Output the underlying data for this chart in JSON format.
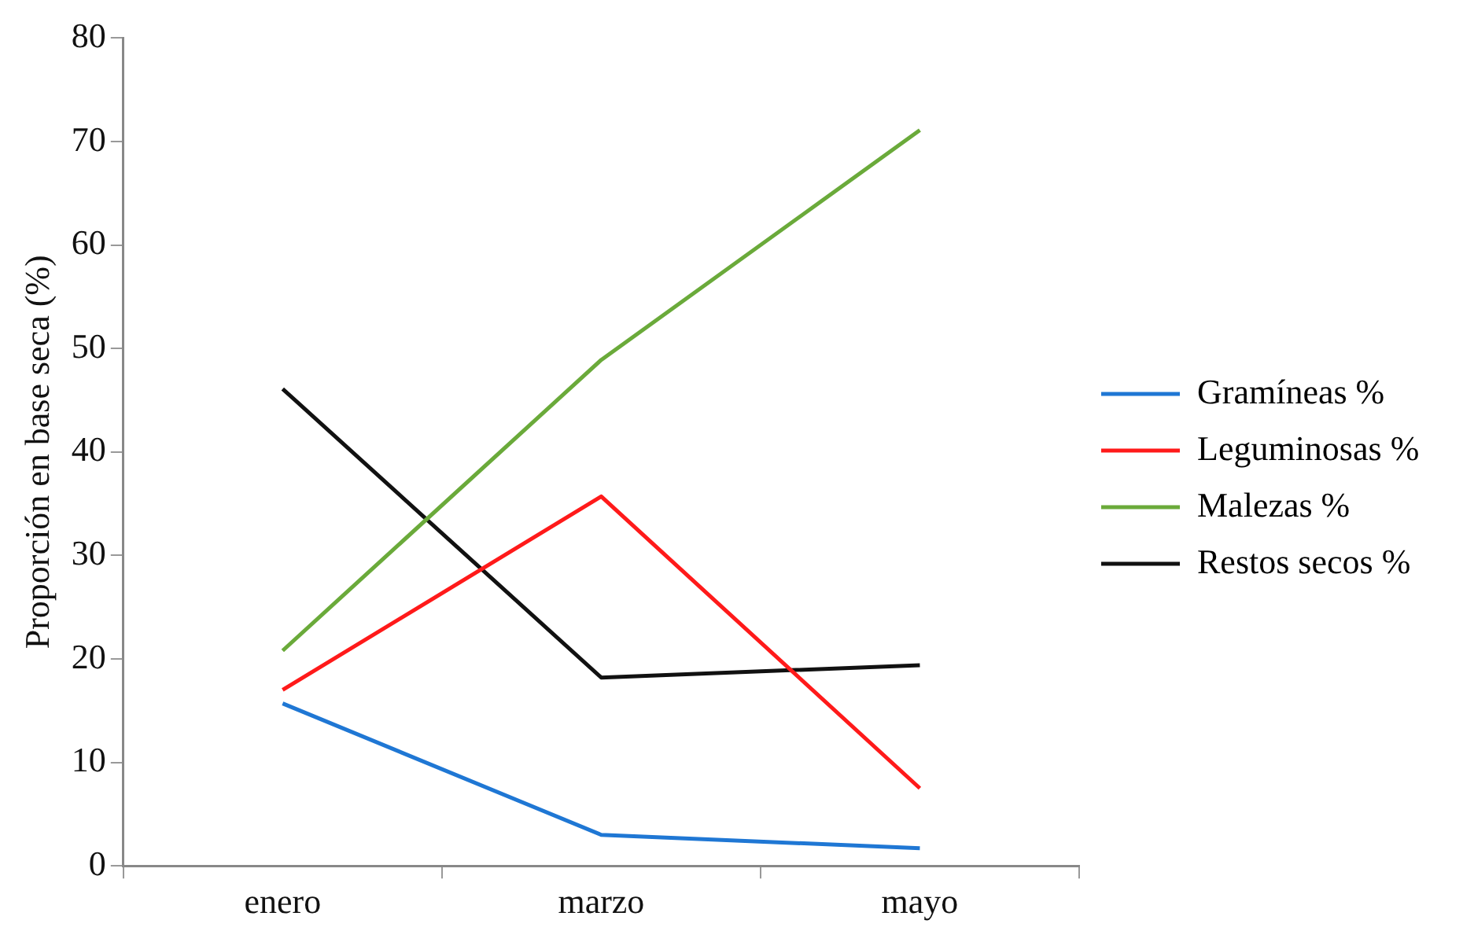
{
  "chart_data": {
    "type": "line",
    "ylabel": "Proporción en base seca (%)",
    "categories": [
      "enero",
      "marzo",
      "mayo"
    ],
    "series": [
      {
        "name": "Gramíneas %",
        "color": "#1f77d4",
        "values": [
          15.7,
          3.0,
          1.7
        ]
      },
      {
        "name": "Leguminosas %",
        "color": "#ff1a1a",
        "values": [
          17.0,
          35.7,
          7.5
        ]
      },
      {
        "name": "Malezas %",
        "color": "#6aaa3a",
        "values": [
          20.8,
          48.9,
          71.1
        ]
      },
      {
        "name": "Restos secos %",
        "color": "#111111",
        "values": [
          46.1,
          18.2,
          19.4
        ]
      }
    ],
    "ylim": [
      0,
      80
    ],
    "yticks": [
      0,
      10,
      20,
      30,
      40,
      50,
      60,
      70,
      80
    ],
    "grid": false,
    "legend": "right",
    "marker": "none",
    "line_style": "solid"
  }
}
